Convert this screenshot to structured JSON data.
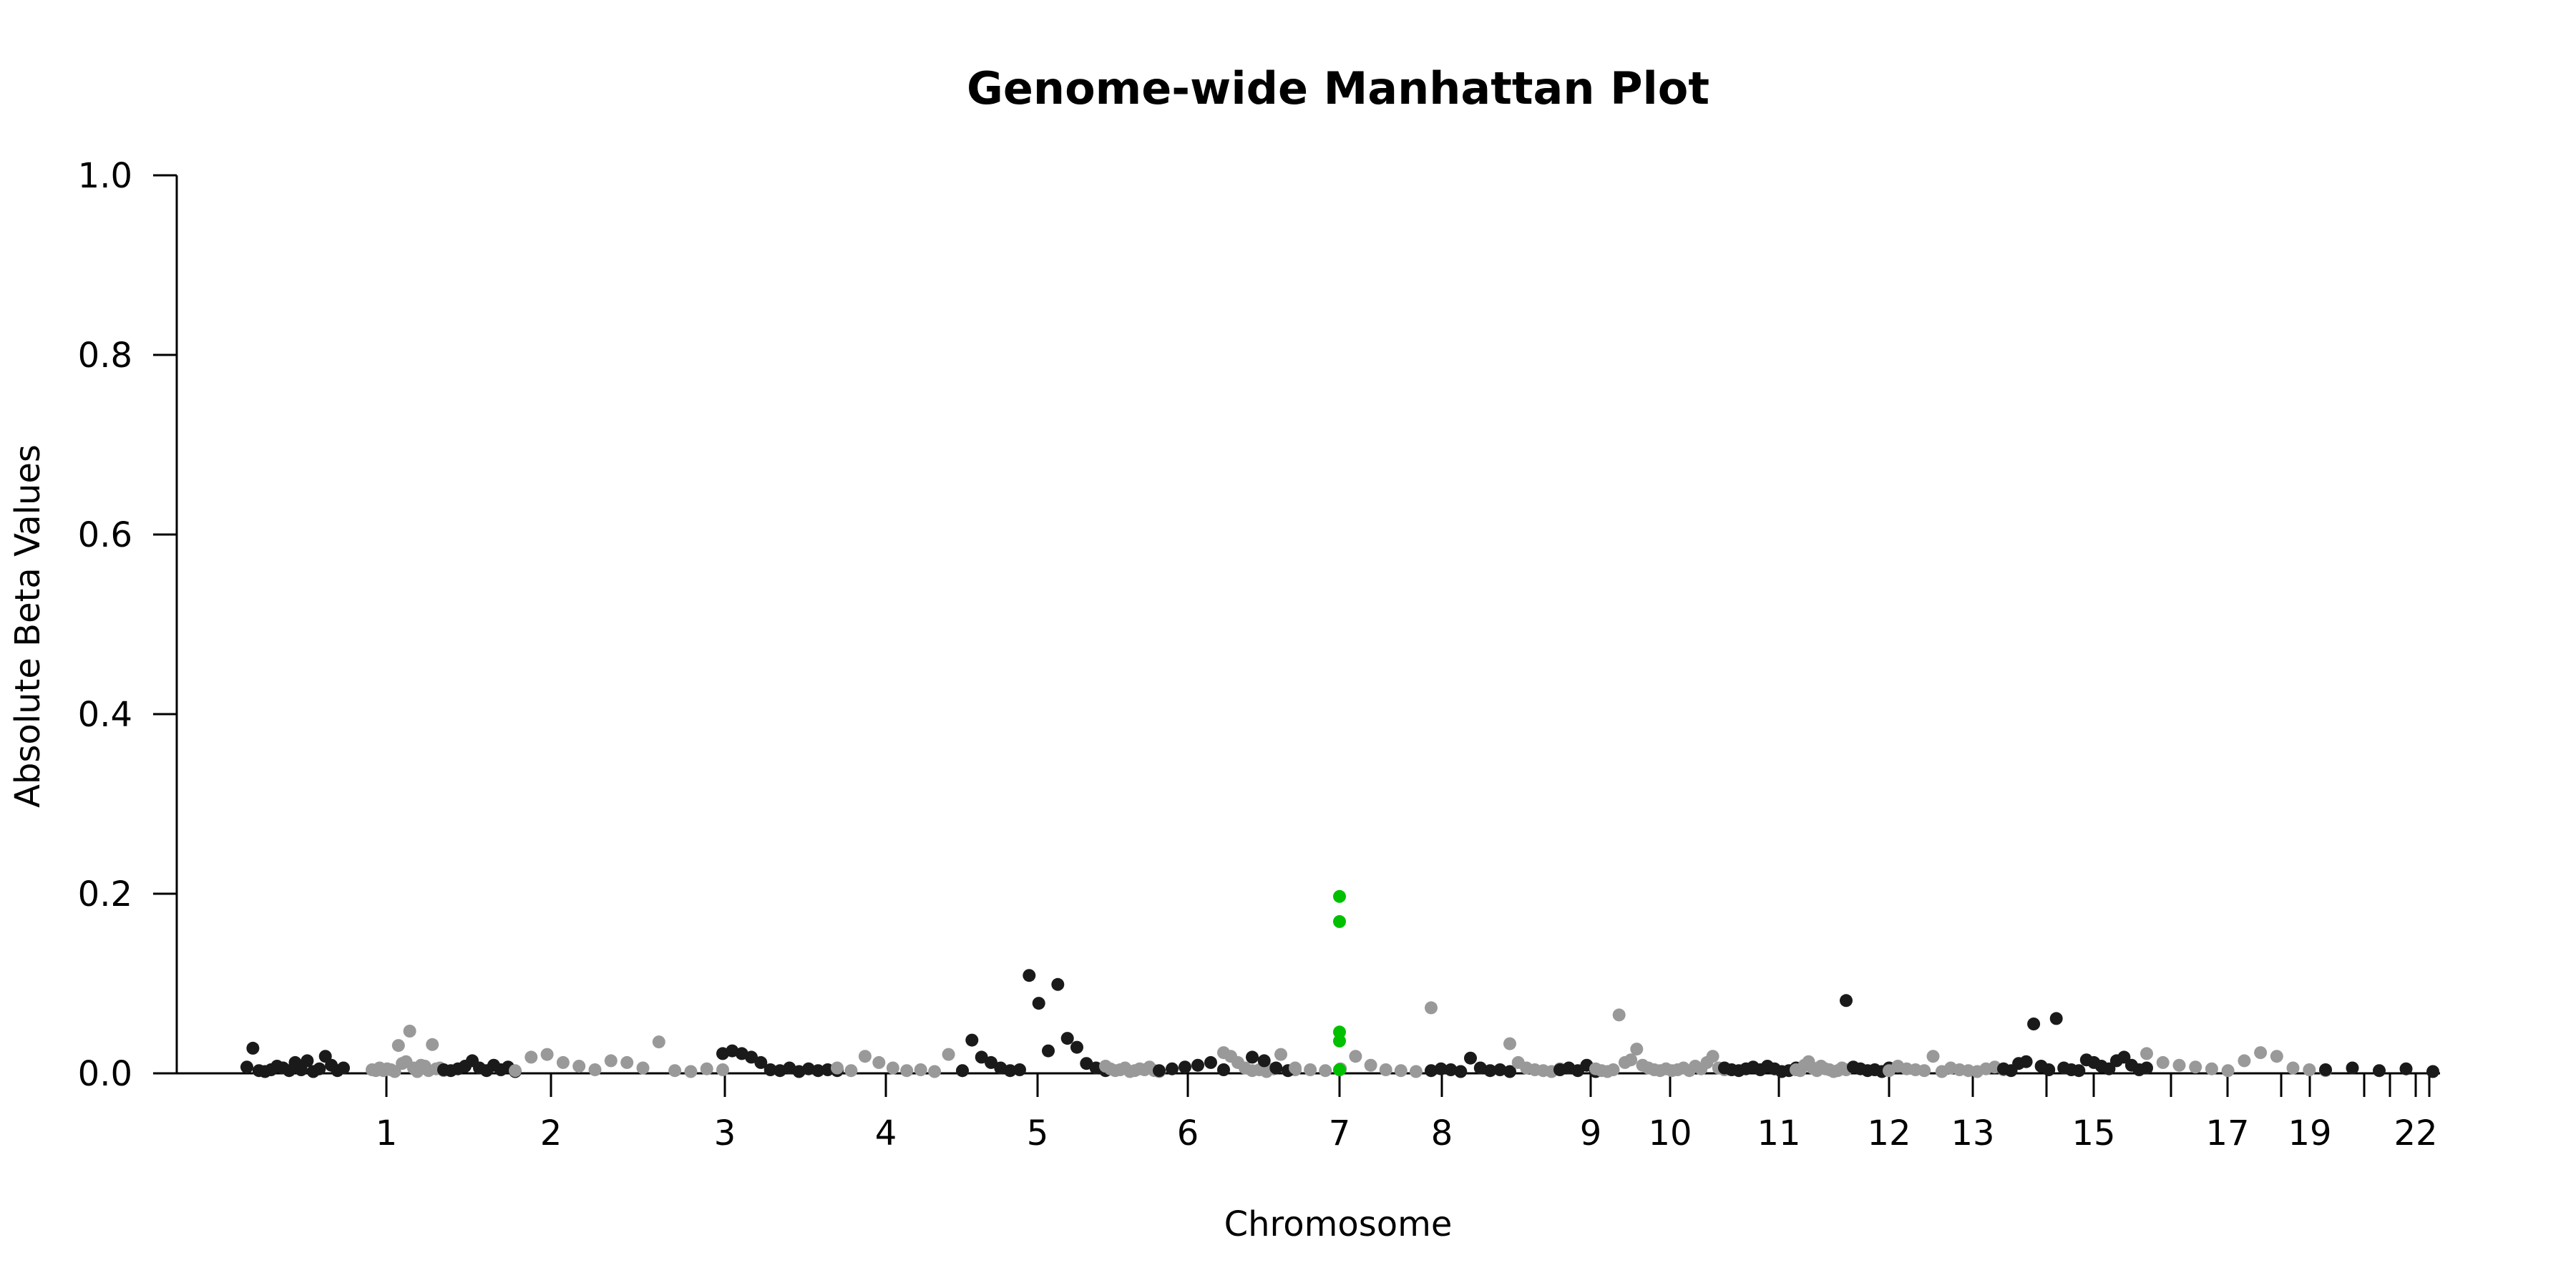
{
  "chart_data": {
    "type": "scatter",
    "title": "Genome-wide Manhattan Plot",
    "xlabel": "Chromosome",
    "ylabel": "Absolute Beta Values",
    "ylim": [
      0,
      1.0
    ],
    "yticks": [
      "0.0",
      "0.2",
      "0.4",
      "0.6",
      "0.8",
      "1.0"
    ],
    "x_tick_labels": [
      {
        "chr": 1,
        "label": "1"
      },
      {
        "chr": 2,
        "label": "2"
      },
      {
        "chr": 3,
        "label": "3"
      },
      {
        "chr": 4,
        "label": "4"
      },
      {
        "chr": 5,
        "label": "5"
      },
      {
        "chr": 6,
        "label": "6"
      },
      {
        "chr": 7,
        "label": "7"
      },
      {
        "chr": 8,
        "label": "8"
      },
      {
        "chr": 9,
        "label": "9"
      },
      {
        "chr": 10,
        "label": "10"
      },
      {
        "chr": 11,
        "label": "11"
      },
      {
        "chr": 12,
        "label": "12"
      },
      {
        "chr": 13,
        "label": "13"
      },
      {
        "chr": 14,
        "label": ""
      },
      {
        "chr": 15,
        "label": "15"
      },
      {
        "chr": 16,
        "label": ""
      },
      {
        "chr": 17,
        "label": "17"
      },
      {
        "chr": 18,
        "label": ""
      },
      {
        "chr": 19,
        "label": "19"
      },
      {
        "chr": 20,
        "label": ""
      },
      {
        "chr": 21,
        "label": ""
      },
      {
        "chr": 22,
        "label": "22"
      },
      {
        "chr": 23,
        "label": ""
      }
    ],
    "colors": {
      "odd": "#1a1a1a",
      "even": "#999999",
      "highlight": "#00c000"
    },
    "highlight_chromosome": 7,
    "highlight_values": [
      0.197,
      0.169,
      0.046,
      0.036,
      0.004
    ],
    "points": [
      [
        1,
        0.007
      ],
      [
        1,
        0.028
      ],
      [
        1,
        0.003
      ],
      [
        1,
        0.002
      ],
      [
        1,
        0.004
      ],
      [
        1,
        0.008
      ],
      [
        1,
        0.006
      ],
      [
        1,
        0.003
      ],
      [
        1,
        0.012
      ],
      [
        1,
        0.004
      ],
      [
        1,
        0.014
      ],
      [
        1,
        0.002
      ],
      [
        1,
        0.005
      ],
      [
        1,
        0.019
      ],
      [
        1,
        0.009
      ],
      [
        1,
        0.003
      ],
      [
        1,
        0.006
      ],
      [
        2,
        0.004
      ],
      [
        2,
        0.003
      ],
      [
        2,
        0.006
      ],
      [
        2,
        0.003
      ],
      [
        2,
        0.005
      ],
      [
        2,
        0.004
      ],
      [
        2,
        0.002
      ],
      [
        2,
        0.031
      ],
      [
        2,
        0.011
      ],
      [
        2,
        0.013
      ],
      [
        2,
        0.047
      ],
      [
        2,
        0.006
      ],
      [
        2,
        0.002
      ],
      [
        2,
        0.009
      ],
      [
        2,
        0.008
      ],
      [
        2,
        0.003
      ],
      [
        2,
        0.032
      ],
      [
        2,
        0.005
      ],
      [
        2,
        0.006
      ],
      [
        2,
        0.003
      ],
      [
        3,
        0.004
      ],
      [
        3,
        0.003
      ],
      [
        3,
        0.005
      ],
      [
        3,
        0.008
      ],
      [
        3,
        0.014
      ],
      [
        3,
        0.006
      ],
      [
        3,
        0.003
      ],
      [
        3,
        0.009
      ],
      [
        3,
        0.004
      ],
      [
        3,
        0.007
      ],
      [
        3,
        0.002
      ],
      [
        4,
        0.003
      ],
      [
        4,
        0.018
      ],
      [
        4,
        0.021
      ],
      [
        4,
        0.012
      ],
      [
        4,
        0.008
      ],
      [
        4,
        0.004
      ],
      [
        4,
        0.014
      ],
      [
        4,
        0.012
      ],
      [
        4,
        0.006
      ],
      [
        4,
        0.035
      ],
      [
        4,
        0.003
      ],
      [
        4,
        0.002
      ],
      [
        4,
        0.005
      ],
      [
        4,
        0.004
      ],
      [
        5,
        0.022
      ],
      [
        5,
        0.025
      ],
      [
        5,
        0.022
      ],
      [
        5,
        0.018
      ],
      [
        5,
        0.012
      ],
      [
        5,
        0.004
      ],
      [
        5,
        0.003
      ],
      [
        5,
        0.006
      ],
      [
        5,
        0.002
      ],
      [
        5,
        0.005
      ],
      [
        5,
        0.003
      ],
      [
        5,
        0.004
      ],
      [
        5,
        0.003
      ],
      [
        6,
        0.006
      ],
      [
        6,
        0.003
      ],
      [
        6,
        0.019
      ],
      [
        6,
        0.012
      ],
      [
        6,
        0.006
      ],
      [
        6,
        0.003
      ],
      [
        6,
        0.004
      ],
      [
        6,
        0.002
      ],
      [
        6,
        0.021
      ],
      [
        6,
        0.003
      ],
      [
        7,
        0.003
      ],
      [
        7,
        0.037
      ],
      [
        7,
        0.018
      ],
      [
        7,
        0.012
      ],
      [
        7,
        0.006
      ],
      [
        7,
        0.003
      ],
      [
        7,
        0.004
      ],
      [
        7,
        0.109
      ],
      [
        7,
        0.078
      ],
      [
        7,
        0.025
      ],
      [
        7,
        0.099
      ],
      [
        7,
        0.039
      ],
      [
        7,
        0.029
      ],
      [
        7,
        0.011
      ],
      [
        7,
        0.006
      ],
      [
        7,
        0.003
      ],
      [
        8,
        0.008
      ],
      [
        8,
        0.005
      ],
      [
        8,
        0.003
      ],
      [
        8,
        0.004
      ],
      [
        8,
        0.006
      ],
      [
        8,
        0.002
      ],
      [
        8,
        0.003
      ],
      [
        8,
        0.005
      ],
      [
        8,
        0.004
      ],
      [
        8,
        0.007
      ],
      [
        8,
        0.003
      ],
      [
        8,
        0.002
      ],
      [
        9,
        0.003
      ],
      [
        9,
        0.005
      ],
      [
        9,
        0.007
      ],
      [
        9,
        0.009
      ],
      [
        9,
        0.012
      ],
      [
        9,
        0.004
      ],
      [
        10,
        0.023
      ],
      [
        10,
        0.019
      ],
      [
        10,
        0.012
      ],
      [
        10,
        0.006
      ],
      [
        10,
        0.003
      ],
      [
        10,
        0.004
      ],
      [
        10,
        0.002
      ],
      [
        10,
        0.005
      ],
      [
        10,
        0.021
      ],
      [
        10,
        0.003
      ],
      [
        10,
        0.004
      ],
      [
        11,
        0.018
      ],
      [
        11,
        0.014
      ],
      [
        11,
        0.006
      ],
      [
        11,
        0.003
      ],
      [
        12,
        0.006
      ],
      [
        12,
        0.004
      ],
      [
        12,
        0.003
      ],
      [
        12,
        0.005
      ],
      [
        12,
        0.019
      ],
      [
        12,
        0.009
      ],
      [
        12,
        0.004
      ],
      [
        12,
        0.003
      ],
      [
        12,
        0.002
      ],
      [
        12,
        0.073
      ],
      [
        13,
        0.003
      ],
      [
        13,
        0.005
      ],
      [
        13,
        0.004
      ],
      [
        13,
        0.002
      ],
      [
        13,
        0.017
      ],
      [
        13,
        0.006
      ],
      [
        13,
        0.003
      ],
      [
        13,
        0.004
      ],
      [
        13,
        0.002
      ],
      [
        14,
        0.033
      ],
      [
        14,
        0.012
      ],
      [
        14,
        0.006
      ],
      [
        14,
        0.004
      ],
      [
        14,
        0.003
      ],
      [
        14,
        0.002
      ],
      [
        14,
        0.005
      ],
      [
        15,
        0.004
      ],
      [
        15,
        0.006
      ],
      [
        15,
        0.003
      ],
      [
        15,
        0.009
      ],
      [
        15,
        0.002
      ],
      [
        16,
        0.005
      ],
      [
        16,
        0.003
      ],
      [
        16,
        0.002
      ],
      [
        16,
        0.004
      ],
      [
        16,
        0.065
      ],
      [
        16,
        0.012
      ],
      [
        16,
        0.015
      ],
      [
        16,
        0.027
      ],
      [
        16,
        0.009
      ],
      [
        16,
        0.006
      ],
      [
        16,
        0.004
      ],
      [
        16,
        0.003
      ],
      [
        16,
        0.005
      ],
      [
        16,
        0.003
      ],
      [
        16,
        0.004
      ],
      [
        16,
        0.006
      ],
      [
        16,
        0.003
      ],
      [
        16,
        0.008
      ],
      [
        16,
        0.005
      ],
      [
        16,
        0.012
      ],
      [
        16,
        0.019
      ],
      [
        16,
        0.006
      ],
      [
        16,
        0.004
      ],
      [
        17,
        0.006
      ],
      [
        17,
        0.004
      ],
      [
        17,
        0.003
      ],
      [
        17,
        0.005
      ],
      [
        17,
        0.007
      ],
      [
        17,
        0.004
      ],
      [
        17,
        0.008
      ],
      [
        17,
        0.005
      ],
      [
        17,
        0.002
      ],
      [
        17,
        0.003
      ],
      [
        17,
        0.006
      ],
      [
        18,
        0.004
      ],
      [
        18,
        0.003
      ],
      [
        18,
        0.009
      ],
      [
        18,
        0.013
      ],
      [
        18,
        0.006
      ],
      [
        18,
        0.003
      ],
      [
        18,
        0.008
      ],
      [
        18,
        0.005
      ],
      [
        18,
        0.004
      ],
      [
        18,
        0.002
      ],
      [
        18,
        0.003
      ],
      [
        18,
        0.006
      ],
      [
        18,
        0.004
      ],
      [
        19,
        0.081
      ],
      [
        19,
        0.007
      ],
      [
        19,
        0.005
      ],
      [
        19,
        0.003
      ],
      [
        19,
        0.004
      ],
      [
        19,
        0.002
      ],
      [
        19,
        0.006
      ],
      [
        20,
        0.003
      ],
      [
        20,
        0.008
      ],
      [
        20,
        0.005
      ],
      [
        20,
        0.004
      ],
      [
        20,
        0.003
      ],
      [
        20,
        0.019
      ],
      [
        20,
        0.002
      ],
      [
        20,
        0.006
      ],
      [
        20,
        0.004
      ],
      [
        20,
        0.003
      ],
      [
        20,
        0.002
      ],
      [
        20,
        0.005
      ],
      [
        20,
        0.007
      ],
      [
        20,
        0.004
      ],
      [
        21,
        0.005
      ],
      [
        21,
        0.003
      ],
      [
        21,
        0.011
      ],
      [
        21,
        0.013
      ],
      [
        21,
        0.055
      ],
      [
        21,
        0.008
      ],
      [
        21,
        0.004
      ],
      [
        21,
        0.061
      ],
      [
        21,
        0.006
      ],
      [
        21,
        0.004
      ],
      [
        21,
        0.003
      ],
      [
        21,
        0.015
      ],
      [
        21,
        0.012
      ],
      [
        21,
        0.008
      ],
      [
        21,
        0.005
      ],
      [
        21,
        0.014
      ],
      [
        21,
        0.018
      ],
      [
        21,
        0.009
      ],
      [
        21,
        0.004
      ],
      [
        21,
        0.006
      ],
      [
        22,
        0.022
      ],
      [
        22,
        0.012
      ],
      [
        22,
        0.009
      ],
      [
        22,
        0.007
      ],
      [
        22,
        0.005
      ],
      [
        22,
        0.003
      ],
      [
        22,
        0.014
      ],
      [
        22,
        0.023
      ],
      [
        22,
        0.019
      ],
      [
        22,
        0.006
      ],
      [
        22,
        0.004
      ],
      [
        22,
        0.003
      ],
      [
        23,
        0.004
      ],
      [
        23,
        0.006
      ],
      [
        23,
        0.003
      ],
      [
        23,
        0.005
      ],
      [
        23,
        0.002
      ]
    ]
  }
}
